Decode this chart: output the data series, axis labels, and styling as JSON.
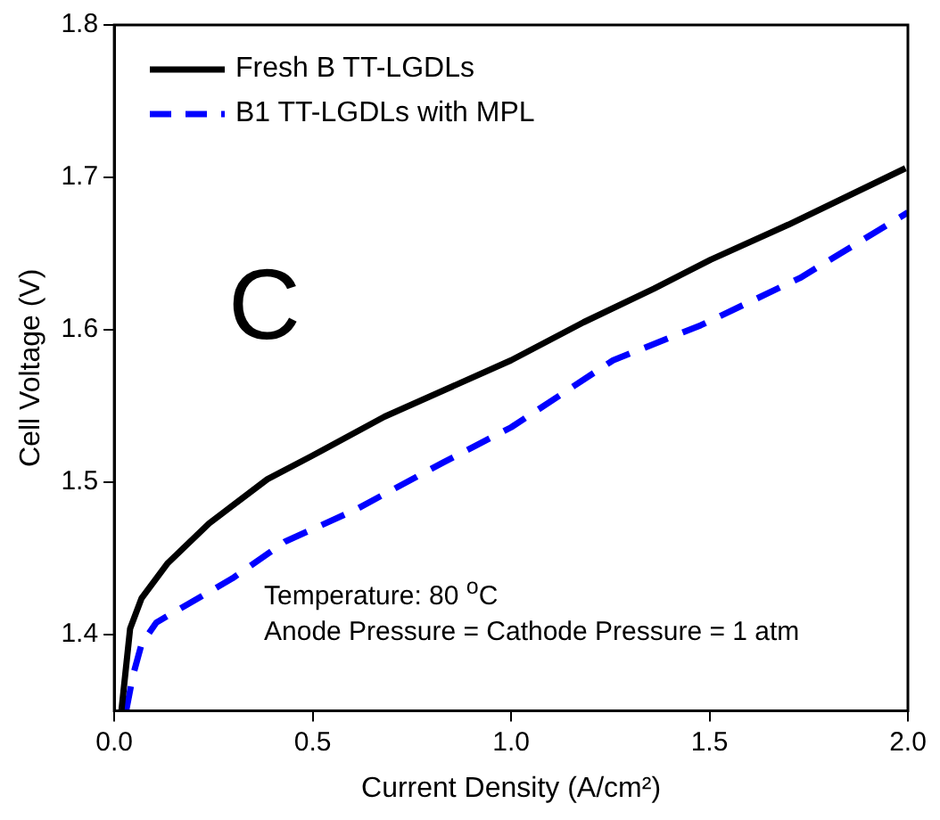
{
  "chart_data": {
    "type": "line",
    "xlabel": "Current Density (A/cm²)",
    "ylabel": "Cell Voltage (V)",
    "xlim": [
      0,
      2.0
    ],
    "xticks": [
      {
        "value": 0,
        "label": "0.0"
      },
      0.5,
      {
        "value": 1,
        "label": "1.0"
      },
      1.5,
      {
        "value": 2,
        "label": "2.0"
      }
    ],
    "ylim": [
      1.35,
      1.8
    ],
    "yticks": [
      1.4,
      1.5,
      1.6,
      1.7,
      1.8
    ],
    "legend": "top left",
    "grid": false,
    "marker": "none",
    "annotations": [
      "C",
      "Temperature: 80 $^{o}$C",
      "Anode Pressure = Cathode Pressure = 1 atm"
    ],
    "series": [
      {
        "name": "Fresh B TT-LGDLs",
        "color": "#000000",
        "line_style": "solid",
        "x": [
          0.018,
          0.04,
          0.069,
          0.135,
          0.239,
          0.386,
          0.496,
          0.681,
          1.0,
          1.183,
          1.36,
          1.503,
          1.699,
          1.994
        ],
        "values": [
          1.35,
          1.404,
          1.424,
          1.447,
          1.473,
          1.502,
          1.517,
          1.543,
          1.58,
          1.605,
          1.627,
          1.646,
          1.669,
          1.706
        ]
      },
      {
        "name": "B1 TT-LGDLs with MPL",
        "color": "#0000ff",
        "line_style": "dashed",
        "x": [
          0.03,
          0.047,
          0.069,
          0.106,
          0.298,
          0.43,
          0.608,
          0.829,
          1.0,
          1.257,
          1.478,
          1.728,
          2.0
        ],
        "values": [
          1.35,
          1.373,
          1.394,
          1.408,
          1.437,
          1.461,
          1.482,
          1.513,
          1.536,
          1.58,
          1.603,
          1.634,
          1.677
        ]
      }
    ]
  }
}
